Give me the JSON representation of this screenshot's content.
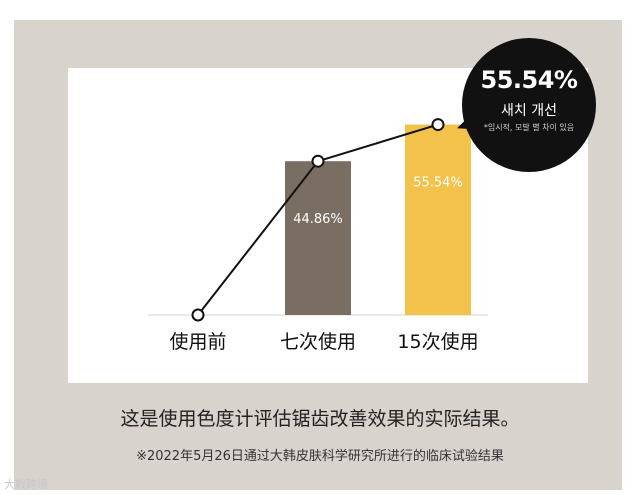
{
  "chart_data": {
    "type": "bar",
    "categories": [
      "使用前",
      "七次使用",
      "15次使用"
    ],
    "series": [
      {
        "values": [
          0,
          44.86,
          55.54
        ],
        "bar_labels": [
          "",
          "44.86%",
          "55.54%"
        ]
      }
    ],
    "line_overlay": true,
    "ylim": [
      0,
      70
    ],
    "grid": false,
    "legend": "none"
  },
  "colors": {
    "bar_before": "#ffffff",
    "bar_seven": "#7a6e63",
    "bar_fifteen": "#f3c24b",
    "line": "#111111"
  },
  "badge": {
    "value": "55.54%",
    "label": "새치 개선",
    "note": "*임시적, 모발 별 차이 있음"
  },
  "caption": {
    "main": "这是使用色度计评估锯齿改善效果的实际结果。",
    "note": "※2022年5月26日通过大韩皮肤科学研究所进行的临床试验结果"
  },
  "watermark": "大戟跨境"
}
